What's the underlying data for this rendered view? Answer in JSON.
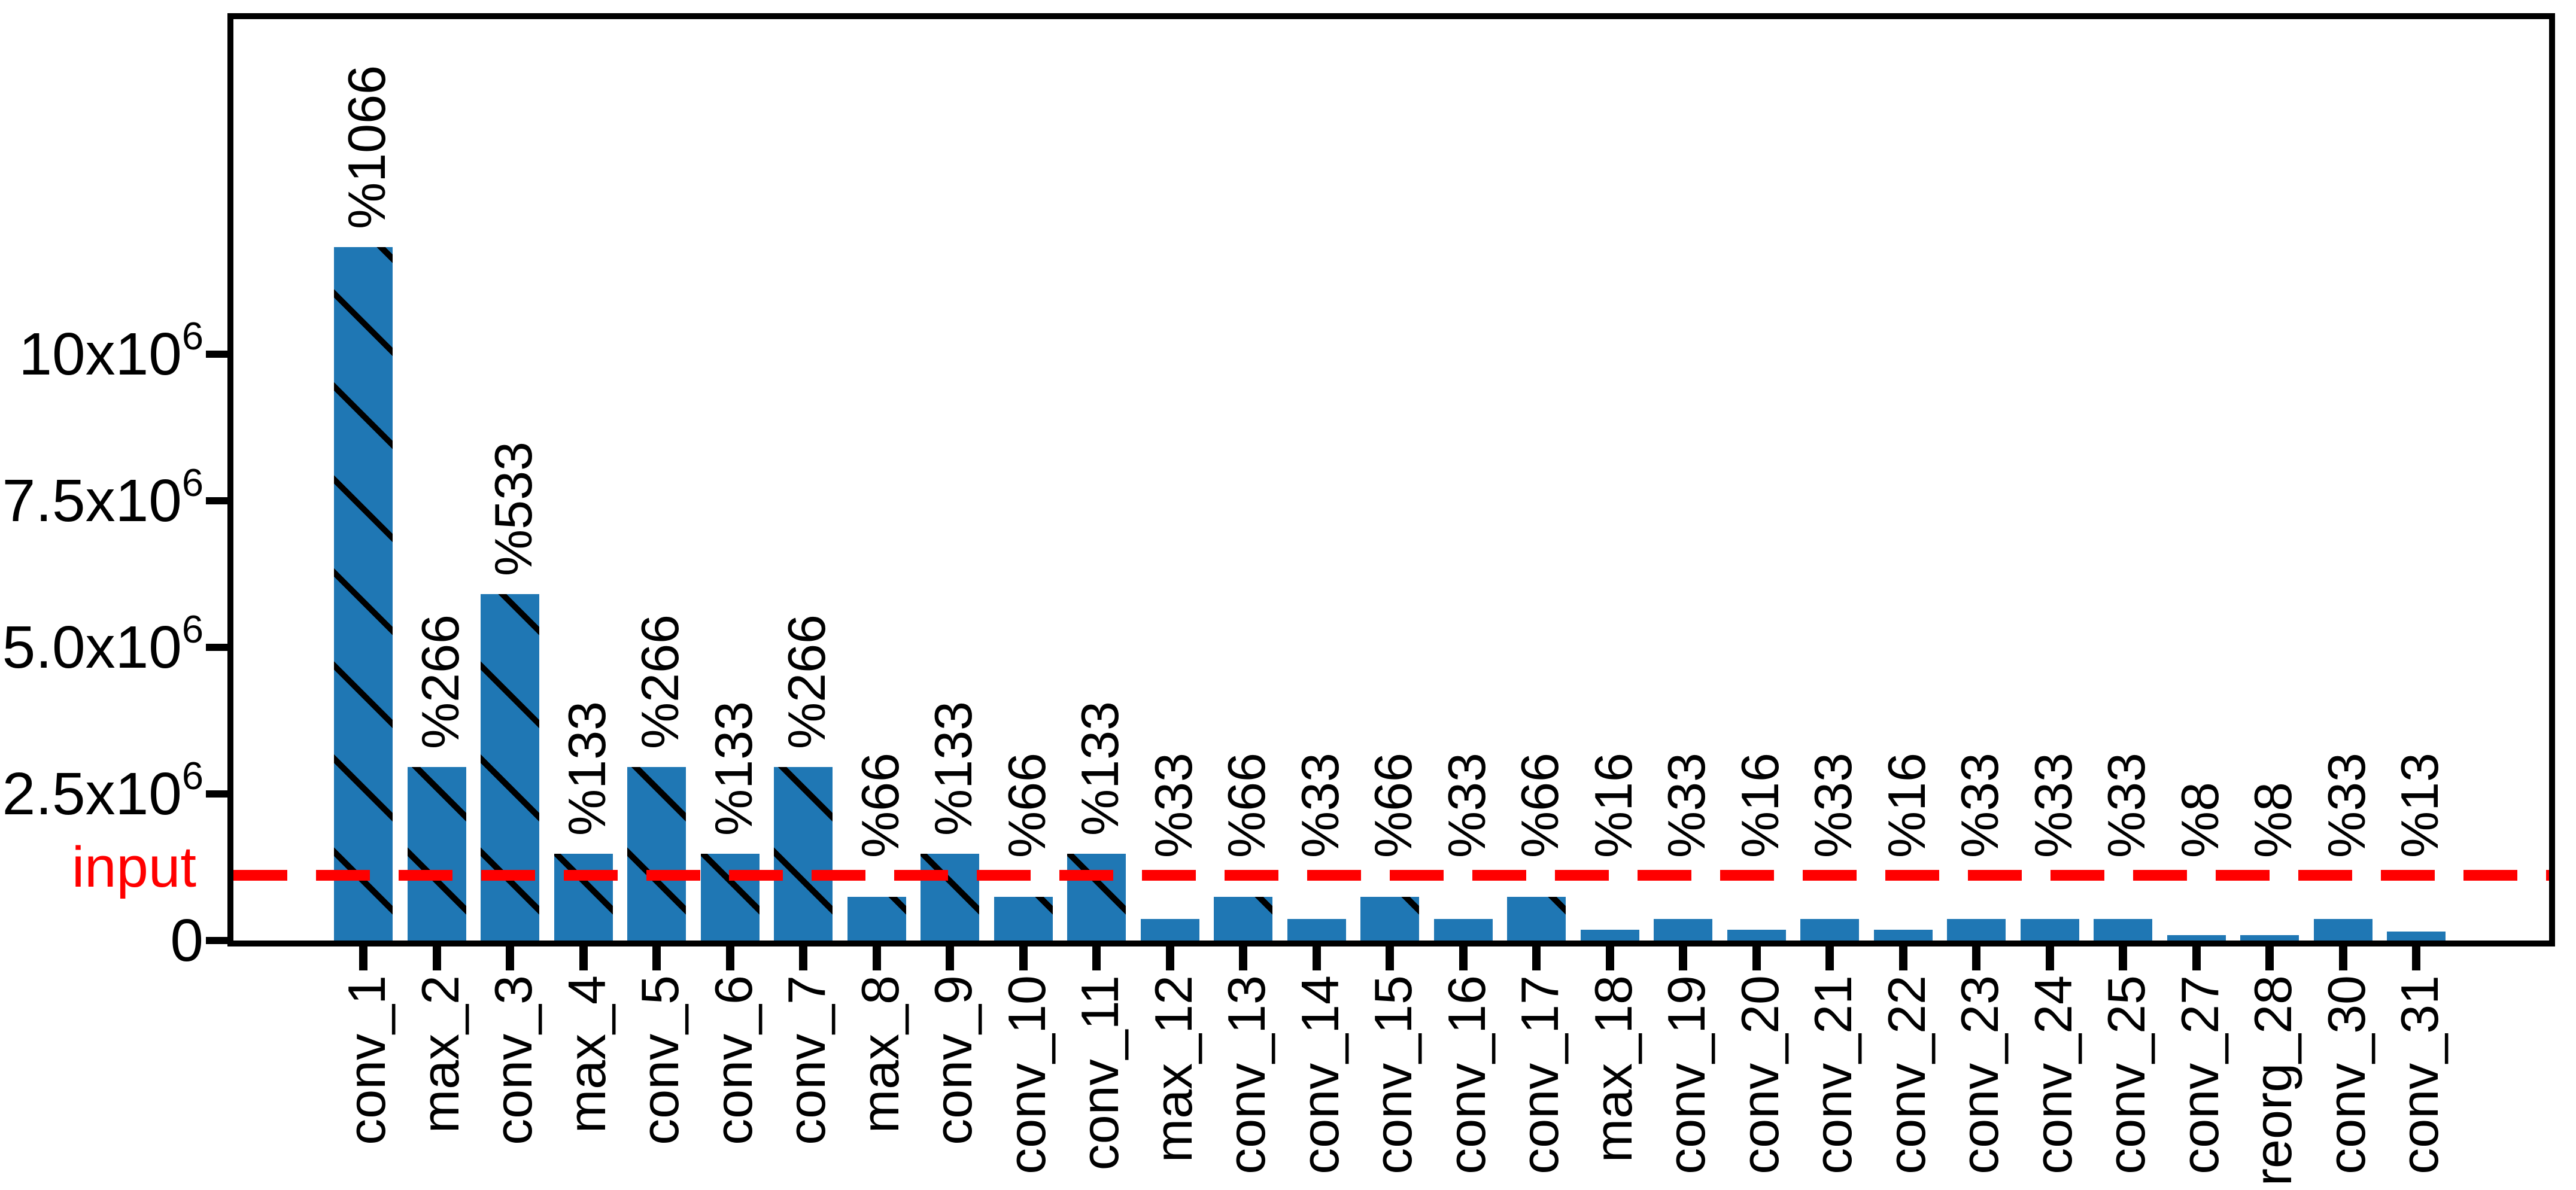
{
  "figure": {
    "background_color": "#ffffff",
    "text_color": "#000000"
  },
  "chart_data": {
    "type": "bar",
    "title": "",
    "xlabel": "",
    "ylabel": "",
    "grid": false,
    "legend": null,
    "bar_color": "#1f77b4",
    "hatch_style": "backslash-diagonal",
    "categories": [
      "conv_1",
      "max_2",
      "conv_3",
      "max_4",
      "conv_5",
      "conv_6",
      "conv_7",
      "max_8",
      "conv_9",
      "conv_10",
      "conv_11",
      "max_12",
      "conv_13",
      "conv_14",
      "conv_15",
      "conv_16",
      "conv_17",
      "max_18",
      "conv_19",
      "conv_20",
      "conv_21",
      "conv_22",
      "conv_23",
      "conv_24",
      "conv_25",
      "conv_27",
      "reorg_28",
      "conv_30",
      "conv_31"
    ],
    "values_millions": [
      11.83,
      2.96,
      5.91,
      1.48,
      2.96,
      1.48,
      2.96,
      0.74,
      1.48,
      0.74,
      1.48,
      0.37,
      0.74,
      0.37,
      0.74,
      0.37,
      0.74,
      0.185,
      0.37,
      0.185,
      0.37,
      0.185,
      0.37,
      0.37,
      0.37,
      0.092,
      0.092,
      0.37,
      0.153
    ],
    "bar_labels": [
      "%1066",
      "%266",
      "%533",
      "%133",
      "%266",
      "%133",
      "%266",
      "%66",
      "%133",
      "%66",
      "%133",
      "%33",
      "%66",
      "%33",
      "%66",
      "%33",
      "%66",
      "%16",
      "%33",
      "%16",
      "%33",
      "%16",
      "%33",
      "%33",
      "%33",
      "%8",
      "%8",
      "%33",
      "%13"
    ],
    "ylim_millions": [
      0,
      15.8
    ],
    "y_ticks": [
      {
        "main": "0",
        "sup": "",
        "value": 0
      },
      {
        "main": "2.5x10",
        "sup": "6",
        "value": 2.5
      },
      {
        "main": "5.0x10",
        "sup": "6",
        "value": 5.0
      },
      {
        "main": "7.5x10",
        "sup": "6",
        "value": 7.5
      },
      {
        "main": "10x10",
        "sup": "6",
        "value": 10
      }
    ],
    "y_tick_label_strings": [
      "0",
      "2.5x10^6",
      "5.0x10^6",
      "7.5x10^6",
      "10x10^6"
    ],
    "reference_line": {
      "label": "input",
      "value_millions": 1.109,
      "color": "#ff0000",
      "style": "dashed"
    }
  }
}
